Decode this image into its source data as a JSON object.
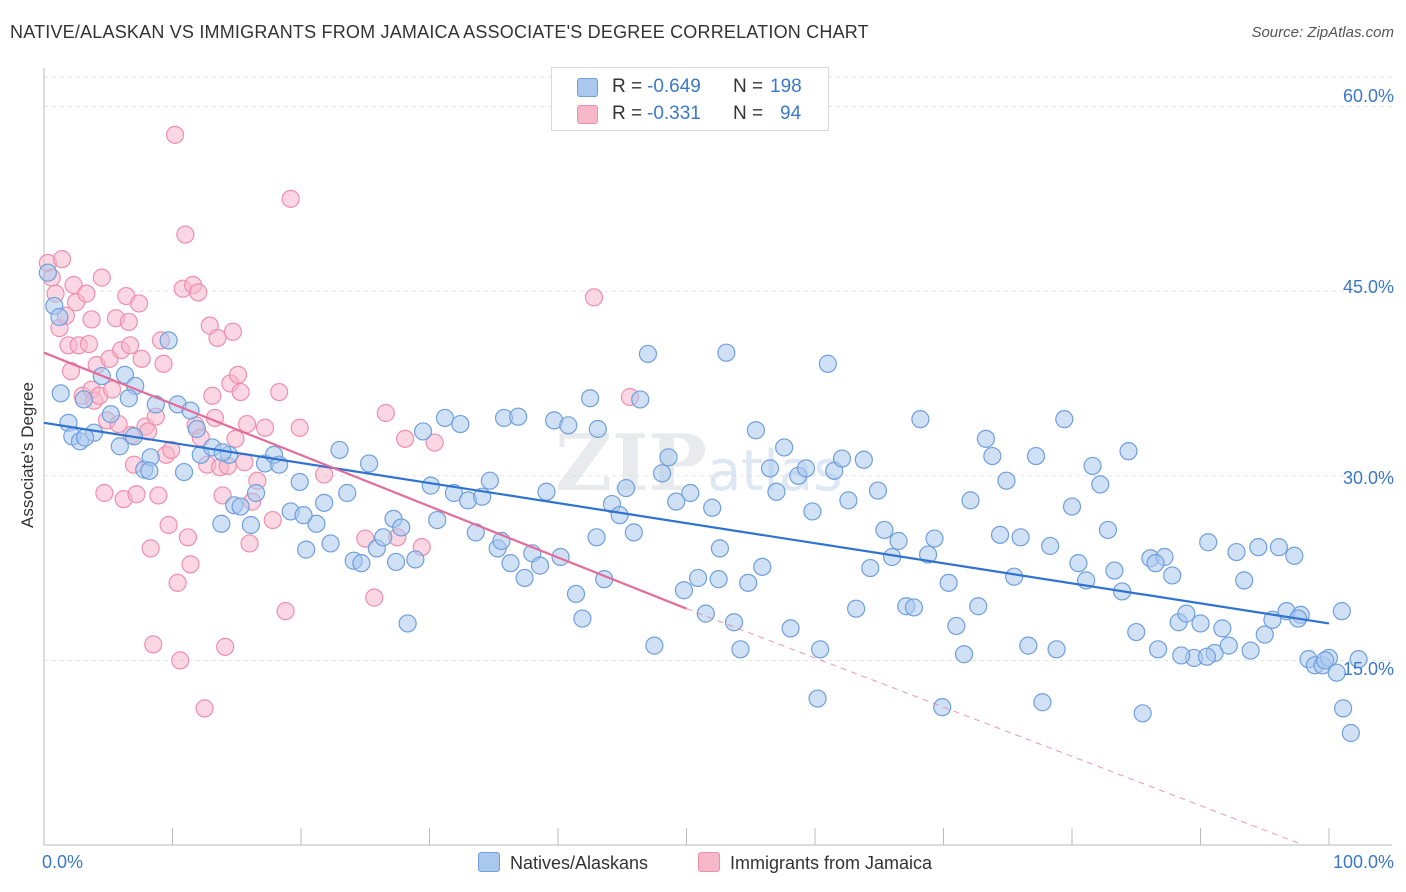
{
  "title": "NATIVE/ALASKAN VS IMMIGRANTS FROM JAMAICA ASSOCIATE'S DEGREE CORRELATION CHART",
  "source": "Source: ZipAtlas.com",
  "watermark": "ZIPatlas",
  "colors": {
    "blue_fill": "#aac8ee",
    "blue_stroke": "#6f9fdc",
    "blue_line": "#2f72cf",
    "pink_fill": "#f6b7cb",
    "pink_stroke": "#ee8fae",
    "pink_line": "#e36d98",
    "value_text": "#3b78c9",
    "grid": "#e2e2e2"
  },
  "stats": [
    {
      "r_label": "R =",
      "r_value": "-0.649",
      "n_label": "N =",
      "n_value": "198",
      "color": "blue"
    },
    {
      "r_label": "R =",
      "r_value": "-0.331",
      "n_label": "N =",
      "n_value": "94",
      "color": "pink"
    }
  ],
  "legend": [
    "Natives/Alaskans",
    "Immigrants from Jamaica"
  ],
  "chart_data": {
    "type": "scatter",
    "title": "NATIVE/ALASKAN VS IMMIGRANTS FROM JAMAICA ASSOCIATE'S DEGREE CORRELATION CHART",
    "xlabel": "",
    "ylabel": "Associate's Degree",
    "xlim": [
      0,
      100
    ],
    "ylim": [
      0,
      65
    ],
    "x_tick_labels": [
      "0.0%",
      "100.0%"
    ],
    "y_ticks": [
      15,
      30,
      45,
      60
    ],
    "y_tick_labels": [
      "15.0%",
      "30.0%",
      "45.0%",
      "60.0%"
    ],
    "grid": true,
    "legend_position": "bottom-center",
    "series": [
      {
        "name": "Natives/Alaskans",
        "color": "blue",
        "trend": {
          "x": [
            0,
            100
          ],
          "y": [
            34.3,
            18.0
          ],
          "dashed_to": null
        },
        "points": [
          [
            0.3,
            46.5
          ],
          [
            0.8,
            43.8
          ],
          [
            1.3,
            36.7
          ],
          [
            1.9,
            34.3
          ],
          [
            2.2,
            33.2
          ],
          [
            2.8,
            32.8
          ],
          [
            3.1,
            36.2
          ],
          [
            3.9,
            33.5
          ],
          [
            4.5,
            38.1
          ],
          [
            5.2,
            35.0
          ],
          [
            5.9,
            32.4
          ],
          [
            6.3,
            38.2
          ],
          [
            7.1,
            37.3
          ],
          [
            7.0,
            33.2
          ],
          [
            7.8,
            30.5
          ],
          [
            8.3,
            31.5
          ],
          [
            8.7,
            35.8
          ],
          [
            9.7,
            41.0
          ],
          [
            10.4,
            35.8
          ],
          [
            10.9,
            30.3
          ],
          [
            11.4,
            35.3
          ],
          [
            12.2,
            31.7
          ],
          [
            13.1,
            32.3
          ],
          [
            13.8,
            26.1
          ],
          [
            14.4,
            31.7
          ],
          [
            14.8,
            27.6
          ],
          [
            15.3,
            27.5
          ],
          [
            16.1,
            26.0
          ],
          [
            16.5,
            28.6
          ],
          [
            17.2,
            31.0
          ],
          [
            17.9,
            31.7
          ],
          [
            18.3,
            30.9
          ],
          [
            19.2,
            27.1
          ],
          [
            19.9,
            29.5
          ],
          [
            20.4,
            24.0
          ],
          [
            21.2,
            26.1
          ],
          [
            21.8,
            27.8
          ],
          [
            22.3,
            24.5
          ],
          [
            23.0,
            32.1
          ],
          [
            23.6,
            28.6
          ],
          [
            24.1,
            23.1
          ],
          [
            24.7,
            22.9
          ],
          [
            25.3,
            31.0
          ],
          [
            25.9,
            24.1
          ],
          [
            26.4,
            25.0
          ],
          [
            27.2,
            26.5
          ],
          [
            27.8,
            25.8
          ],
          [
            28.3,
            18.0
          ],
          [
            28.9,
            23.2
          ],
          [
            29.5,
            33.6
          ],
          [
            30.1,
            29.2
          ],
          [
            30.6,
            26.4
          ],
          [
            31.2,
            34.7
          ],
          [
            31.9,
            28.6
          ],
          [
            32.4,
            34.2
          ],
          [
            33.0,
            28.0
          ],
          [
            33.6,
            25.4
          ],
          [
            34.1,
            28.3
          ],
          [
            34.7,
            29.6
          ],
          [
            35.3,
            24.1
          ],
          [
            35.8,
            34.7
          ],
          [
            36.3,
            22.9
          ],
          [
            36.9,
            34.8
          ],
          [
            37.4,
            21.7
          ],
          [
            38.0,
            23.7
          ],
          [
            38.6,
            22.7
          ],
          [
            39.1,
            28.7
          ],
          [
            39.7,
            34.5
          ],
          [
            40.2,
            23.4
          ],
          [
            40.8,
            34.1
          ],
          [
            41.4,
            20.4
          ],
          [
            41.9,
            18.4
          ],
          [
            42.5,
            36.3
          ],
          [
            43.1,
            33.8
          ],
          [
            43.6,
            21.6
          ],
          [
            44.2,
            27.7
          ],
          [
            44.8,
            26.8
          ],
          [
            45.3,
            29.0
          ],
          [
            45.9,
            25.4
          ],
          [
            46.4,
            36.2
          ],
          [
            47.0,
            39.9
          ],
          [
            47.5,
            16.2
          ],
          [
            48.1,
            30.2
          ],
          [
            48.6,
            31.5
          ],
          [
            49.2,
            27.9
          ],
          [
            49.8,
            20.7
          ],
          [
            50.3,
            28.6
          ],
          [
            50.9,
            21.7
          ],
          [
            51.5,
            18.8
          ],
          [
            52.0,
            27.4
          ],
          [
            52.6,
            24.1
          ],
          [
            53.1,
            40.0
          ],
          [
            53.7,
            18.1
          ],
          [
            54.2,
            15.9
          ],
          [
            54.8,
            21.3
          ],
          [
            55.4,
            33.7
          ],
          [
            55.9,
            22.6
          ],
          [
            56.5,
            30.6
          ],
          [
            57.0,
            28.7
          ],
          [
            57.6,
            32.3
          ],
          [
            58.1,
            17.6
          ],
          [
            58.7,
            30.0
          ],
          [
            59.3,
            30.6
          ],
          [
            59.8,
            27.1
          ],
          [
            60.4,
            15.9
          ],
          [
            61.0,
            39.1
          ],
          [
            61.5,
            30.4
          ],
          [
            62.1,
            31.4
          ],
          [
            62.6,
            28.0
          ],
          [
            63.2,
            19.2
          ],
          [
            63.8,
            31.3
          ],
          [
            64.3,
            22.5
          ],
          [
            64.9,
            28.8
          ],
          [
            65.4,
            25.6
          ],
          [
            66.0,
            23.4
          ],
          [
            66.5,
            24.7
          ],
          [
            67.1,
            19.4
          ],
          [
            67.7,
            19.3
          ],
          [
            68.2,
            34.6
          ],
          [
            68.8,
            23.6
          ],
          [
            69.3,
            24.9
          ],
          [
            69.9,
            11.2
          ],
          [
            70.4,
            21.3
          ],
          [
            71.0,
            17.8
          ],
          [
            71.6,
            15.5
          ],
          [
            72.1,
            28.0
          ],
          [
            72.7,
            19.4
          ],
          [
            73.3,
            33.0
          ],
          [
            73.8,
            31.6
          ],
          [
            74.4,
            25.2
          ],
          [
            74.9,
            29.6
          ],
          [
            75.5,
            21.8
          ],
          [
            76.0,
            25.0
          ],
          [
            76.6,
            16.2
          ],
          [
            77.2,
            31.6
          ],
          [
            77.7,
            11.6
          ],
          [
            78.3,
            24.3
          ],
          [
            78.8,
            15.9
          ],
          [
            79.4,
            34.6
          ],
          [
            80.0,
            27.5
          ],
          [
            80.5,
            22.9
          ],
          [
            81.1,
            21.5
          ],
          [
            81.6,
            30.8
          ],
          [
            82.2,
            29.3
          ],
          [
            82.8,
            25.6
          ],
          [
            83.3,
            22.3
          ],
          [
            83.9,
            20.6
          ],
          [
            84.4,
            32.0
          ],
          [
            85.0,
            17.3
          ],
          [
            85.5,
            10.7
          ],
          [
            86.1,
            23.3
          ],
          [
            86.7,
            15.9
          ],
          [
            87.2,
            23.4
          ],
          [
            87.8,
            21.9
          ],
          [
            88.3,
            18.1
          ],
          [
            88.9,
            18.8
          ],
          [
            89.5,
            15.2
          ],
          [
            90.0,
            18.0
          ],
          [
            90.6,
            24.6
          ],
          [
            91.1,
            15.6
          ],
          [
            91.7,
            17.6
          ],
          [
            92.2,
            16.2
          ],
          [
            92.8,
            23.8
          ],
          [
            93.4,
            21.5
          ],
          [
            93.9,
            15.8
          ],
          [
            94.5,
            24.2
          ],
          [
            95.0,
            17.1
          ],
          [
            95.6,
            18.3
          ],
          [
            96.1,
            24.2
          ],
          [
            96.7,
            19.0
          ],
          [
            97.3,
            23.5
          ],
          [
            97.8,
            18.7
          ],
          [
            98.4,
            15.1
          ],
          [
            98.9,
            14.6
          ],
          [
            99.5,
            14.6
          ],
          [
            100.0,
            15.2
          ],
          [
            100.6,
            14.0
          ],
          [
            101.1,
            11.1
          ],
          [
            101.7,
            9.1
          ],
          [
            102.3,
            15.1
          ],
          [
            101.0,
            19.0
          ],
          [
            99.7,
            15.0
          ],
          [
            97.6,
            18.4
          ],
          [
            90.5,
            15.3
          ],
          [
            88.5,
            15.4
          ],
          [
            86.5,
            22.9
          ],
          [
            60.2,
            11.9
          ],
          [
            52.5,
            21.6
          ],
          [
            43.0,
            25.0
          ],
          [
            35.6,
            24.7
          ],
          [
            27.4,
            23.0
          ],
          [
            20.2,
            26.8
          ],
          [
            13.9,
            31.9
          ],
          [
            8.2,
            30.4
          ],
          [
            3.2,
            33.1
          ],
          [
            1.2,
            42.9
          ],
          [
            6.6,
            36.3
          ],
          [
            11.9,
            33.8
          ]
        ]
      },
      {
        "name": "Immigrants from Jamaica",
        "color": "pink",
        "trend": {
          "x": [
            0,
            50
          ],
          "y": [
            40.0,
            19.2
          ],
          "dashed_to": [
            98,
            0
          ]
        },
        "points": [
          [
            0.3,
            47.3
          ],
          [
            0.6,
            46.1
          ],
          [
            0.9,
            44.8
          ],
          [
            1.2,
            42.0
          ],
          [
            1.4,
            47.6
          ],
          [
            1.7,
            43.0
          ],
          [
            1.9,
            40.6
          ],
          [
            2.1,
            38.5
          ],
          [
            2.3,
            45.5
          ],
          [
            2.5,
            44.1
          ],
          [
            2.7,
            40.6
          ],
          [
            3.0,
            36.5
          ],
          [
            3.3,
            44.8
          ],
          [
            3.5,
            40.7
          ],
          [
            3.7,
            37.0
          ],
          [
            3.9,
            36.1
          ],
          [
            4.1,
            39.0
          ],
          [
            4.3,
            36.5
          ],
          [
            4.5,
            46.1
          ],
          [
            4.7,
            28.6
          ],
          [
            4.9,
            34.5
          ],
          [
            5.1,
            39.5
          ],
          [
            5.3,
            37.0
          ],
          [
            5.6,
            42.8
          ],
          [
            5.8,
            34.2
          ],
          [
            6.0,
            40.2
          ],
          [
            6.2,
            28.1
          ],
          [
            6.4,
            44.6
          ],
          [
            6.6,
            42.5
          ],
          [
            6.8,
            33.3
          ],
          [
            7.0,
            30.9
          ],
          [
            7.2,
            28.5
          ],
          [
            7.4,
            44.0
          ],
          [
            7.6,
            39.5
          ],
          [
            7.9,
            34.0
          ],
          [
            8.1,
            33.6
          ],
          [
            8.3,
            24.1
          ],
          [
            8.5,
            16.3
          ],
          [
            8.7,
            34.8
          ],
          [
            8.9,
            28.4
          ],
          [
            9.1,
            41.0
          ],
          [
            9.3,
            39.1
          ],
          [
            9.5,
            31.7
          ],
          [
            9.7,
            26.0
          ],
          [
            9.9,
            32.1
          ],
          [
            10.2,
            57.7
          ],
          [
            10.4,
            21.3
          ],
          [
            10.6,
            15.0
          ],
          [
            10.8,
            45.2
          ],
          [
            11.0,
            49.6
          ],
          [
            11.2,
            25.0
          ],
          [
            11.4,
            22.8
          ],
          [
            11.6,
            45.5
          ],
          [
            11.8,
            34.1
          ],
          [
            12.0,
            44.9
          ],
          [
            12.2,
            33.1
          ],
          [
            12.5,
            11.1
          ],
          [
            12.7,
            30.9
          ],
          [
            12.9,
            42.2
          ],
          [
            13.1,
            36.5
          ],
          [
            13.3,
            34.7
          ],
          [
            13.5,
            41.2
          ],
          [
            13.7,
            30.7
          ],
          [
            13.9,
            28.4
          ],
          [
            14.1,
            16.1
          ],
          [
            14.3,
            30.8
          ],
          [
            14.5,
            37.5
          ],
          [
            14.7,
            41.7
          ],
          [
            14.9,
            33.0
          ],
          [
            15.1,
            38.2
          ],
          [
            15.3,
            36.8
          ],
          [
            15.6,
            31.1
          ],
          [
            15.8,
            34.2
          ],
          [
            16.0,
            24.5
          ],
          [
            16.2,
            27.9
          ],
          [
            16.6,
            29.6
          ],
          [
            17.2,
            33.9
          ],
          [
            17.8,
            26.4
          ],
          [
            18.3,
            36.8
          ],
          [
            18.8,
            19.0
          ],
          [
            19.2,
            52.5
          ],
          [
            19.9,
            33.9
          ],
          [
            21.8,
            30.1
          ],
          [
            25.0,
            24.9
          ],
          [
            25.7,
            20.1
          ],
          [
            26.6,
            35.1
          ],
          [
            27.5,
            25.0
          ],
          [
            28.1,
            33.0
          ],
          [
            29.4,
            24.2
          ],
          [
            30.4,
            32.7
          ],
          [
            42.8,
            44.5
          ],
          [
            45.6,
            36.4
          ],
          [
            6.7,
            40.6
          ],
          [
            3.7,
            42.7
          ]
        ]
      }
    ]
  }
}
